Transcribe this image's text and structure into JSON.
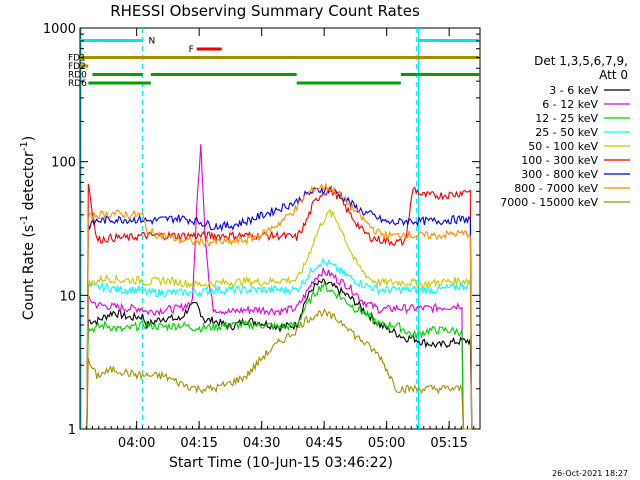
{
  "chart_data": {
    "type": "line",
    "title": "RHESSI Observing Summary Count Rates",
    "xlabel": "Start Time (10-Jun-15 03:46:22)",
    "ylabel": "Count Rate (s",
    "ylabel_sup": "-1",
    "ylabel_rest": " detector",
    "ylabel_sup2": "-1",
    "ylabel_close": ")",
    "y_scale": "log",
    "ylim": [
      1,
      1000
    ],
    "xlim_minutes": [
      0,
      96
    ],
    "x_ticks": [
      "04:00",
      "04:15",
      "04:30",
      "04:45",
      "05:00",
      "05:15"
    ],
    "x_tick_minutes": [
      13.6,
      28.6,
      43.6,
      58.6,
      73.6,
      88.6
    ],
    "y_ticks": [
      "1",
      "10",
      "100",
      "1000"
    ],
    "y_tick_values": [
      1,
      10,
      100,
      1000
    ],
    "legend_header": [
      "Det 1,3,5,6,7,9,",
      "Att 0"
    ],
    "timestamp": "26-Oct-2021 18:27",
    "flags": [
      {
        "label": "N",
        "color": "#00e5ee",
        "level": 1,
        "segments": [
          [
            0,
            15
          ],
          [
            81,
            96
          ]
        ]
      },
      {
        "label": "F",
        "color": "#ee0000",
        "level": 2,
        "segments": [
          [
            28,
            34
          ]
        ]
      },
      {
        "label": "FD1",
        "color": "#a39000",
        "level": 3,
        "segments": [
          [
            0,
            96
          ]
        ]
      },
      {
        "label": "FD2",
        "color": "#a39000",
        "level": 4,
        "segments": [
          [
            0,
            2
          ]
        ]
      },
      {
        "label": "RD0",
        "color": "#00a000",
        "level": 5,
        "segments": [
          [
            3,
            15
          ],
          [
            17,
            52
          ],
          [
            77,
            96
          ]
        ]
      },
      {
        "label": "RD6",
        "color": "#00a000",
        "level": 6,
        "segments": [
          [
            2,
            17
          ],
          [
            52,
            77
          ]
        ]
      }
    ],
    "night_boundaries_minutes": [
      15.0,
      80.8
    ],
    "night_boundaries_style": [
      "dashed",
      "dashed"
    ],
    "solid_boundaries_minutes": [
      0,
      81.0
    ],
    "series": [
      {
        "name": "3 - 6 keV",
        "color": "#000000",
        "x": [
          0,
          2,
          4,
          8,
          12,
          15,
          16,
          20,
          24,
          26,
          28,
          30,
          32,
          36,
          40,
          44,
          48,
          52,
          54,
          56,
          58,
          60,
          62,
          64,
          66,
          68,
          72,
          76,
          78,
          80,
          82,
          86,
          90,
          94,
          96
        ],
        "y": [
          0,
          6.5,
          6.4,
          7.5,
          6.8,
          7,
          6,
          6.8,
          6.6,
          8,
          8.5,
          6.5,
          6.5,
          5.8,
          6.5,
          6.2,
          5.8,
          6,
          9,
          11.5,
          12.5,
          12,
          11,
          10,
          9,
          7.8,
          6,
          5.2,
          4.8,
          4.8,
          4.5,
          4.2,
          4.5,
          4.6,
          0
        ]
      },
      {
        "name": "6 - 12 keV",
        "color": "#e000e0",
        "x": [
          0,
          2,
          4,
          8,
          12,
          15,
          16,
          20,
          24,
          27,
          28,
          29,
          30,
          31,
          32,
          36,
          40,
          44,
          48,
          52,
          54,
          56,
          58,
          60,
          62,
          64,
          66,
          68,
          72,
          76,
          80,
          84,
          88,
          92,
          96
        ],
        "y": [
          0,
          9.5,
          8.5,
          8.2,
          8,
          8,
          7.5,
          7.8,
          8,
          9,
          45,
          140,
          30,
          12,
          8,
          7.5,
          7.8,
          7.8,
          7.6,
          8,
          10,
          13,
          15,
          14.5,
          13,
          12,
          10.5,
          9,
          7.8,
          8,
          8,
          8,
          8.2,
          8.5,
          0
        ]
      },
      {
        "name": "12 - 25 keV",
        "color": "#00d000",
        "x": [
          0,
          2,
          6,
          10,
          15,
          16,
          20,
          24,
          28,
          32,
          36,
          40,
          44,
          48,
          52,
          54,
          56,
          58,
          60,
          62,
          64,
          66,
          68,
          72,
          76,
          80,
          84,
          88,
          92,
          96
        ],
        "y": [
          0,
          5.5,
          6,
          5.5,
          6,
          6,
          5.8,
          6,
          5.7,
          5.8,
          6,
          6,
          6,
          5.8,
          6,
          8,
          10,
          12,
          11,
          10,
          9,
          8,
          7.5,
          6,
          6,
          5,
          5.5,
          5.5,
          5.3,
          0
        ]
      },
      {
        "name": "25 - 50 keV",
        "color": "#00ffff",
        "x": [
          0,
          2,
          6,
          10,
          15,
          16,
          20,
          24,
          28,
          32,
          36,
          40,
          44,
          48,
          52,
          54,
          56,
          58,
          60,
          62,
          64,
          66,
          68,
          72,
          76,
          80,
          82,
          86,
          90,
          94,
          96
        ],
        "y": [
          0,
          11.5,
          11.5,
          11,
          11,
          10.5,
          10.5,
          10.5,
          10.5,
          11,
          11,
          11,
          11,
          11,
          11,
          13,
          16,
          18,
          17,
          15.5,
          14,
          13,
          12,
          11,
          11,
          11,
          11,
          11,
          11.5,
          12,
          0
        ]
      },
      {
        "name": "50 - 100 keV",
        "color": "#c8c800",
        "x": [
          0,
          2,
          6,
          10,
          15,
          16,
          20,
          24,
          28,
          32,
          36,
          40,
          44,
          48,
          52,
          54,
          56,
          58,
          60,
          62,
          64,
          66,
          68,
          70,
          72,
          76,
          80,
          82,
          86,
          90,
          94,
          96
        ],
        "y": [
          0,
          12,
          13.5,
          13,
          13,
          12.5,
          13,
          12.5,
          12,
          12.3,
          12.5,
          12.8,
          12.5,
          13,
          13,
          17,
          25,
          35,
          42,
          35,
          25,
          18,
          15,
          13,
          12.5,
          12.5,
          12.5,
          12,
          12.5,
          12.8,
          13,
          0
        ]
      },
      {
        "name": "100 - 300 keV",
        "color": "#ee0000",
        "x": [
          0,
          2,
          4,
          8,
          12,
          15,
          16,
          20,
          24,
          28,
          32,
          36,
          40,
          44,
          48,
          52,
          54,
          56,
          58,
          60,
          62,
          64,
          66,
          68,
          70,
          72,
          76,
          78,
          80,
          82,
          86,
          90,
          94,
          96
        ],
        "y": [
          0,
          70,
          26,
          27,
          27,
          28,
          28,
          28,
          28,
          28,
          28,
          28,
          28,
          28,
          28,
          27,
          34,
          48,
          58,
          62,
          55,
          44,
          36,
          30,
          27,
          26,
          25,
          25,
          64,
          56,
          56,
          57,
          62,
          0
        ]
      },
      {
        "name": "300 - 800 keV",
        "color": "#0000ee",
        "x": [
          0,
          2,
          4,
          8,
          12,
          15,
          16,
          20,
          24,
          28,
          32,
          36,
          40,
          44,
          48,
          52,
          54,
          56,
          58,
          60,
          62,
          64,
          66,
          68,
          70,
          72,
          74,
          76,
          78,
          80,
          82,
          86,
          90,
          94,
          96
        ],
        "y": [
          0,
          33,
          36,
          37,
          37,
          37,
          36,
          37,
          38,
          36,
          33,
          33,
          36,
          40,
          45,
          50,
          56,
          60,
          62,
          62,
          58,
          52,
          46,
          42,
          40,
          37,
          35,
          35,
          36,
          36,
          36,
          36,
          37,
          37,
          0
        ]
      },
      {
        "name": "800 - 7000 keV",
        "color": "#ff9000",
        "x": [
          0,
          2,
          4,
          8,
          12,
          15,
          16,
          20,
          24,
          28,
          32,
          36,
          40,
          44,
          48,
          52,
          54,
          56,
          58,
          60,
          62,
          64,
          66,
          68,
          70,
          72,
          74,
          76,
          78,
          80,
          82,
          86,
          90,
          94,
          96
        ],
        "y": [
          0,
          38,
          40,
          41,
          40,
          40,
          30,
          28,
          26,
          25,
          25,
          25,
          26,
          29,
          35,
          45,
          55,
          62,
          65,
          63,
          58,
          50,
          43,
          37,
          32,
          29,
          28,
          28,
          29,
          28,
          28,
          28,
          29,
          29,
          0
        ]
      },
      {
        "name": "7000 - 15000 keV",
        "color": "#a39000",
        "x": [
          0,
          2,
          4,
          8,
          12,
          15,
          16,
          20,
          24,
          28,
          32,
          36,
          40,
          44,
          48,
          52,
          54,
          56,
          58,
          60,
          62,
          64,
          66,
          68,
          72,
          76,
          80,
          84,
          88,
          92,
          96
        ],
        "y": [
          0,
          3.2,
          2.5,
          2.8,
          2.6,
          2.5,
          2.5,
          2.5,
          2.2,
          2.0,
          2.0,
          2.2,
          2.5,
          3.5,
          4.5,
          5.5,
          6.5,
          7.0,
          7.5,
          7.0,
          6.5,
          6.0,
          5.0,
          4.5,
          3.5,
          2.0,
          2.0,
          2.0,
          2.0,
          2.0,
          0
        ]
      }
    ]
  }
}
